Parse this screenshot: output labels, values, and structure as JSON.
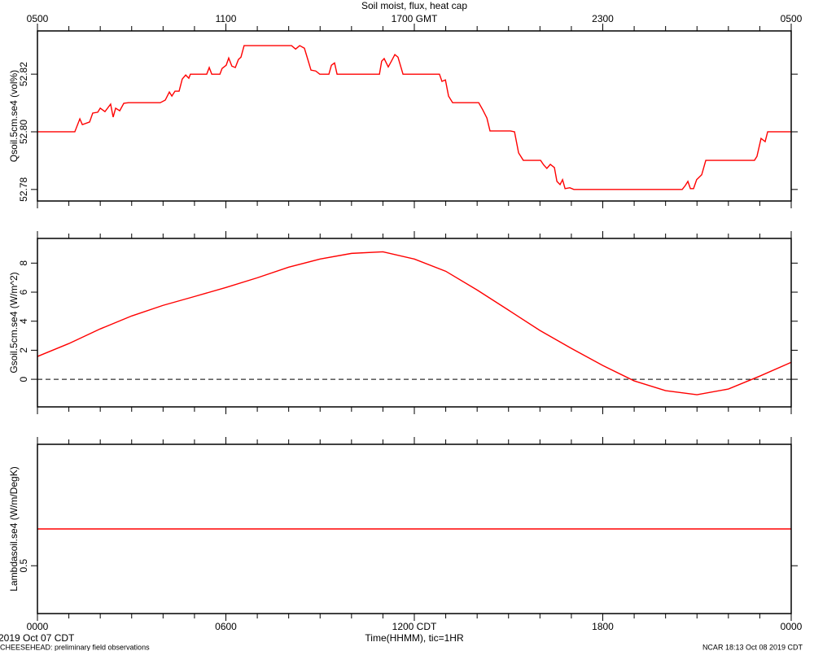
{
  "title": "Soil moist, flux, heat cap",
  "x_label": "Time(HHMM), tic=1HR",
  "date_left": "2019 Oct 07 CDT",
  "footer_left": "CHEESEHEAD: preliminary field observations",
  "footer_right": "NCAR 18:13 Oct 08 2019 CDT",
  "x_minor_ticks": [
    1,
    2,
    3,
    4,
    5,
    7,
    8,
    9,
    10,
    11,
    13,
    14,
    15,
    16,
    17,
    19,
    20,
    21,
    22,
    23
  ],
  "chart_data": [
    {
      "type": "line",
      "y_label": "Qsoil.5cm.se4 (vol%)",
      "color": "#ff0000",
      "xlim": [
        0,
        24
      ],
      "x2ticks": [
        {
          "value": 0,
          "label": "0500"
        },
        {
          "value": 6,
          "label": "1100"
        },
        {
          "value": 12,
          "label": "1700 GMT"
        },
        {
          "value": 18,
          "label": "2300"
        },
        {
          "value": 24,
          "label": "0500"
        }
      ],
      "ylim": [
        52.776,
        52.835
      ],
      "yticks": [
        52.78,
        {
          "value": 52.8,
          "label": "52.80"
        },
        52.82
      ],
      "x": [
        0,
        1.19,
        1.35,
        1.43,
        1.66,
        1.76,
        1.92,
        2.0,
        2.15,
        2.33,
        2.41,
        2.49,
        2.62,
        2.75,
        2.9,
        3.91,
        4.07,
        4.2,
        4.28,
        4.38,
        4.51,
        4.61,
        4.72,
        4.82,
        4.87,
        5.39,
        5.47,
        5.55,
        5.81,
        5.88,
        6.01,
        6.09,
        6.19,
        6.3,
        6.4,
        6.48,
        6.58,
        8.09,
        8.22,
        8.35,
        8.5,
        8.6,
        8.71,
        8.86,
        8.99,
        9.28,
        9.36,
        9.46,
        9.54,
        10.89,
        10.96,
        11.04,
        11.17,
        11.27,
        11.38,
        11.48,
        11.64,
        12.8,
        12.88,
        12.99,
        13.09,
        13.22,
        14.05,
        14.18,
        14.31,
        14.41,
        15.06,
        15.19,
        15.32,
        15.47,
        16.02,
        16.12,
        16.22,
        16.33,
        16.46,
        16.54,
        16.64,
        16.72,
        16.8,
        16.95,
        17.08,
        20.53,
        20.63,
        20.71,
        20.79,
        20.89,
        20.99,
        21.15,
        21.28,
        22.83,
        22.91,
        23.04,
        23.17,
        23.25,
        24
      ],
      "values": [
        52.8,
        52.8,
        52.8045,
        52.8025,
        52.8034,
        52.8065,
        52.8068,
        52.8082,
        52.807,
        52.8096,
        52.8051,
        52.8082,
        52.8073,
        52.8099,
        52.8101,
        52.8101,
        52.811,
        52.8138,
        52.8124,
        52.8141,
        52.8141,
        52.8183,
        52.8197,
        52.8186,
        52.82,
        52.82,
        52.8223,
        52.82,
        52.82,
        52.822,
        52.8231,
        52.8256,
        52.8228,
        52.8223,
        52.8251,
        52.8259,
        52.8299,
        52.8299,
        52.8287,
        52.8299,
        52.829,
        52.8254,
        52.8214,
        52.8211,
        52.82,
        52.82,
        52.8231,
        52.8239,
        52.82,
        52.82,
        52.8245,
        52.8254,
        52.8225,
        52.8245,
        52.8268,
        52.8259,
        52.82,
        52.82,
        52.8175,
        52.818,
        52.8124,
        52.8101,
        52.8101,
        52.8076,
        52.8048,
        52.8003,
        52.8003,
        52.8,
        52.7927,
        52.7901,
        52.7901,
        52.7885,
        52.7873,
        52.7887,
        52.7876,
        52.7828,
        52.7817,
        52.7834,
        52.7803,
        52.7806,
        52.78,
        52.78,
        52.7814,
        52.7828,
        52.7803,
        52.7803,
        52.7834,
        52.7851,
        52.7901,
        52.7901,
        52.7915,
        52.7977,
        52.7966,
        52.8,
        52.8
      ]
    },
    {
      "type": "line",
      "y_label": "Gsoil.5cm.se4 (W/m^2)",
      "color": "#ff0000",
      "xlim": [
        0,
        24
      ],
      "ylim": [
        -1.9,
        9.7
      ],
      "yticks": [
        0,
        2,
        4,
        6,
        8
      ],
      "reference_line": 0,
      "x": [
        0,
        1,
        2,
        3,
        4,
        5,
        6,
        7,
        8,
        9,
        10,
        11,
        12,
        13,
        14,
        15,
        16,
        17,
        18,
        19,
        20,
        21,
        22,
        23,
        24
      ],
      "values": [
        1.57,
        2.46,
        3.47,
        4.36,
        5.09,
        5.7,
        6.32,
        6.99,
        7.72,
        8.28,
        8.67,
        8.78,
        8.28,
        7.44,
        6.15,
        4.76,
        3.36,
        2.13,
        0.95,
        -0.11,
        -0.78,
        -1.06,
        -0.67,
        0.22,
        1.17
      ]
    },
    {
      "type": "line",
      "y_label": "Lambdasoil.se4 (W/m/DegK)",
      "color": "#ff0000",
      "xlim": [
        0,
        24
      ],
      "ylim": [
        0.37,
        0.83
      ],
      "yticks": [
        0.5
      ],
      "xticks": [
        {
          "value": 0,
          "label": "0000"
        },
        {
          "value": 6,
          "label": "0600"
        },
        {
          "value": 12,
          "label": "1200 CDT"
        },
        {
          "value": 18,
          "label": "1800"
        },
        {
          "value": 24,
          "label": "0000"
        }
      ],
      "x": [
        0,
        24
      ],
      "values": [
        0.6,
        0.6
      ]
    }
  ]
}
